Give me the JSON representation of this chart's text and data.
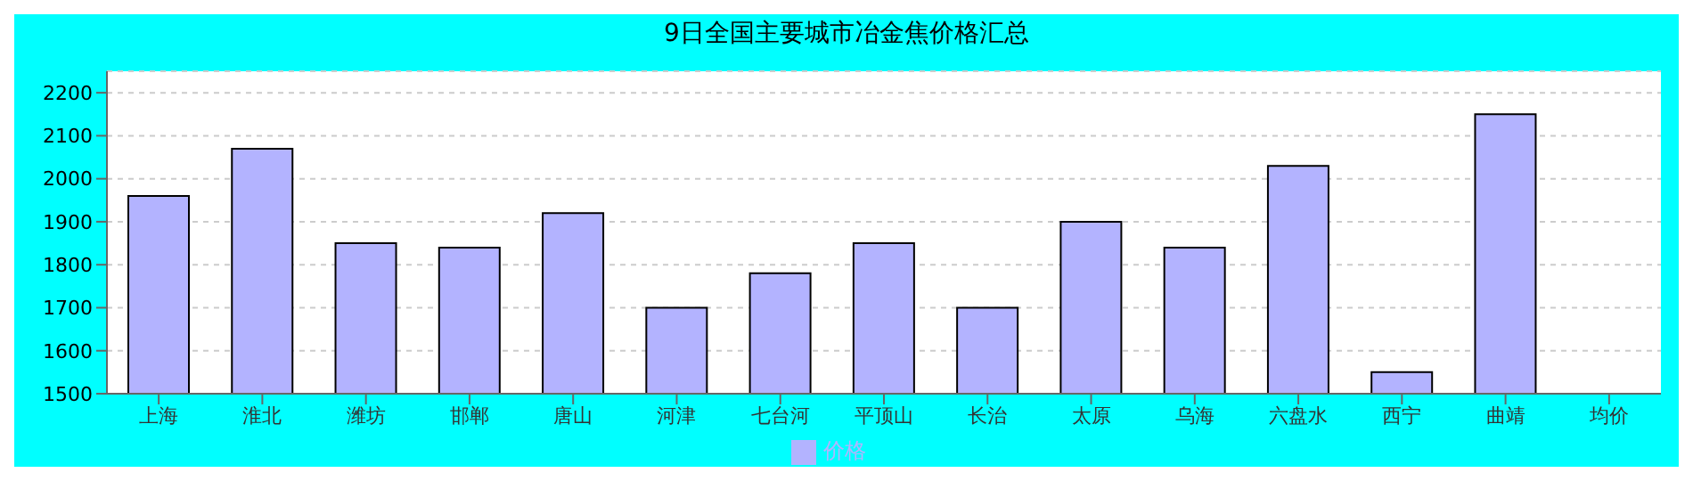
{
  "chart_data": {
    "type": "bar",
    "title": "9日全国主要城市冶金焦价格汇总",
    "categories": [
      "上海",
      "淮北",
      "潍坊",
      "邯郸",
      "唐山",
      "河津",
      "七台河",
      "平顶山",
      "长治",
      "太原",
      "乌海",
      "六盘水",
      "西宁",
      "曲靖",
      "均价"
    ],
    "series": [
      {
        "name": "价格",
        "color": "#b3b3ff",
        "values": [
          1960,
          2070,
          1850,
          1840,
          1920,
          1700,
          1780,
          1850,
          1700,
          1900,
          1840,
          2030,
          1550,
          2150,
          null
        ]
      }
    ],
    "ylim": [
      1500,
      2250
    ],
    "yticks": [
      1500,
      1600,
      1700,
      1800,
      1900,
      2000,
      2100,
      2200
    ],
    "grid": "y",
    "legend": "bottom"
  }
}
